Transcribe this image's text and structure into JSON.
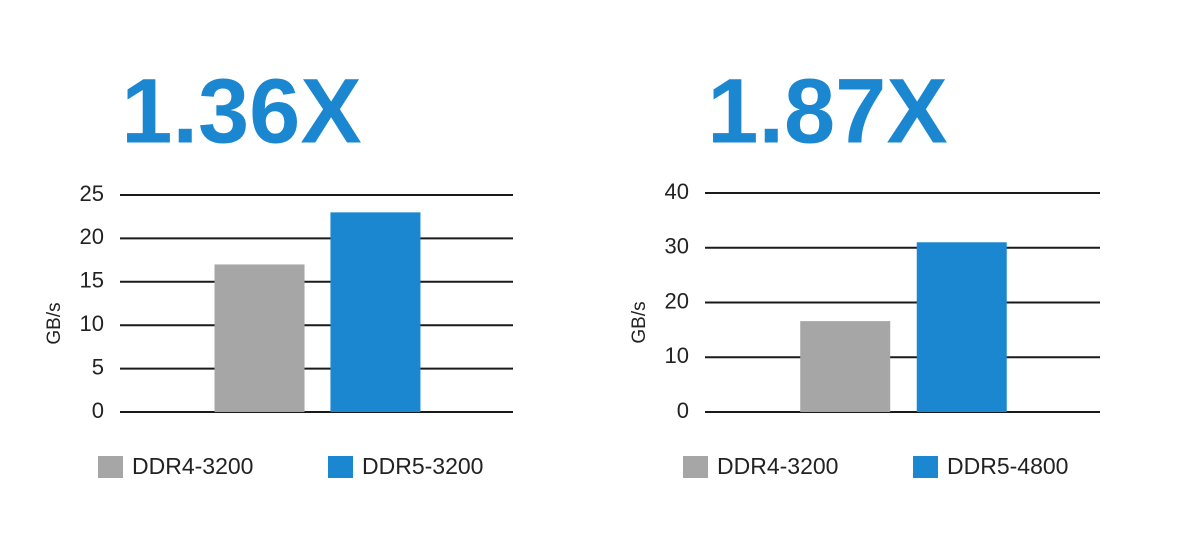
{
  "chart_data": [
    {
      "type": "bar",
      "title": "1.36X",
      "y_label": "GB/s",
      "categories": [
        null
      ],
      "series": [
        {
          "name": "DDR4-3200",
          "color": "#a6a6a7",
          "values": [
            17
          ]
        },
        {
          "name": "DDR5-3200",
          "color": "#1a87d0",
          "values": [
            23
          ]
        }
      ],
      "ylim": [
        0,
        25
      ],
      "yticks": [
        0,
        5,
        10,
        15,
        20,
        25
      ],
      "grid": true
    },
    {
      "type": "bar",
      "title": "1.87X",
      "y_label": "GB/s",
      "categories": [
        null
      ],
      "series": [
        {
          "name": "DDR4-3200",
          "color": "#a6a6a7",
          "values": [
            16.6
          ]
        },
        {
          "name": "DDR5-4800",
          "color": "#1a87d0",
          "values": [
            31
          ]
        }
      ],
      "ylim": [
        0,
        40
      ],
      "yticks": [
        0,
        10,
        20,
        30,
        40
      ],
      "grid": true
    }
  ]
}
